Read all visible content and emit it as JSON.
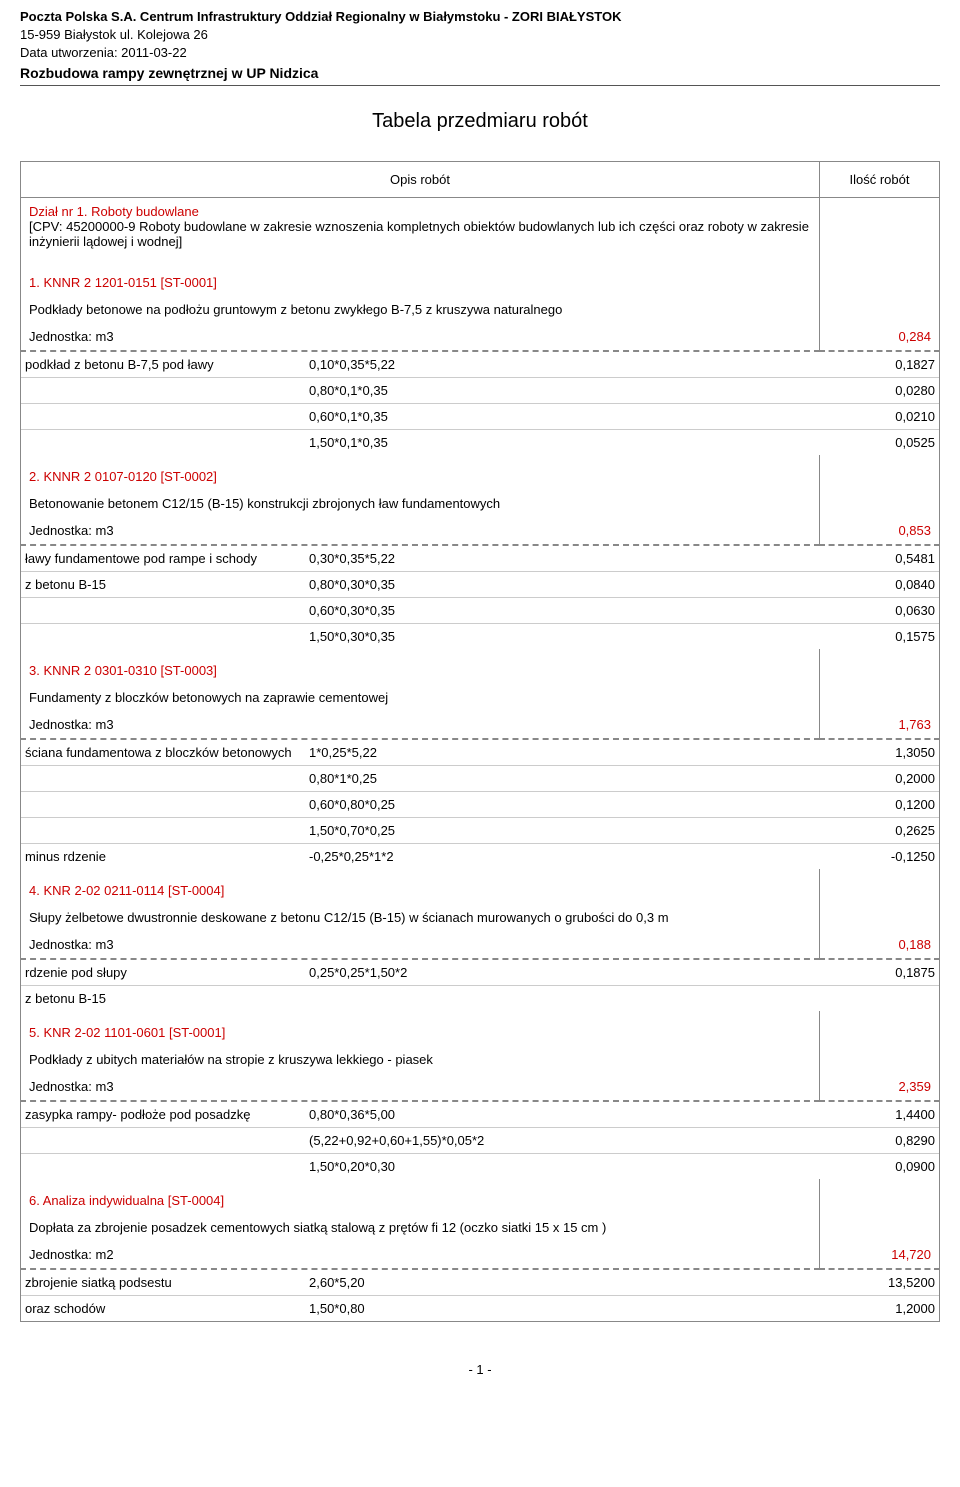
{
  "header": {
    "company_line": "Poczta Polska S.A.  Centrum Infrastruktury Oddział Regionalny w Białymstoku - ZORI BIAŁYSTOK",
    "address_line": "15-959 Białystok ul. Kolejowa 26",
    "date_label": "Data utworzenia: ",
    "date_value": "2011-03-22",
    "project": "Rozbudowa  rampy zewnętrznej  w UP Nidzica"
  },
  "title": "Tabela przedmiaru robót",
  "columns": {
    "desc": "Opis robót",
    "qty": "Ilość robót"
  },
  "section": {
    "title": "Dział nr 1. Roboty budowlane",
    "sub": "[CPV: 45200000-9 Roboty budowlane w zakresie wznoszenia kompletnych obiektów budowlanych lub ich części oraz roboty w zakresie inżynierii lądowej i wodnej]"
  },
  "items": [
    {
      "title": "1. KNNR 2  1201-0151   [ST-0001]",
      "desc": "Podkłady betonowe na podłożu gruntowym z betonu zwykłego B-7,5 z kruszywa naturalnego",
      "unit": "Jednostka: m3",
      "total": "0,284",
      "rows": [
        {
          "label": "podkład z betonu B-7,5 pod ławy",
          "expr": "0,10*0,35*5,22",
          "val": "0,1827"
        },
        {
          "label": "",
          "expr": "0,80*0,1*0,35",
          "val": "0,0280"
        },
        {
          "label": "",
          "expr": "0,60*0,1*0,35",
          "val": "0,0210"
        },
        {
          "label": "",
          "expr": "1,50*0,1*0,35",
          "val": "0,0525"
        }
      ]
    },
    {
      "title": "2. KNNR 2  0107-0120   [ST-0002]",
      "desc": "Betonowanie betonem C12/15 (B-15) konstrukcji zbrojonych ław fundamentowych",
      "unit": "Jednostka: m3",
      "total": "0,853",
      "rows": [
        {
          "label": "ławy fundamentowe pod rampe i schody",
          "expr": "0,30*0,35*5,22",
          "val": "0,5481"
        },
        {
          "label": "z betonu B-15",
          "expr": "0,80*0,30*0,35",
          "val": "0,0840"
        },
        {
          "label": "",
          "expr": "0,60*0,30*0,35",
          "val": "0,0630"
        },
        {
          "label": "",
          "expr": "1,50*0,30*0,35",
          "val": "0,1575"
        }
      ]
    },
    {
      "title": "3. KNNR 2  0301-0310   [ST-0003]",
      "desc": "Fundamenty z bloczków betonowych na zaprawie cementowej",
      "unit": "Jednostka: m3",
      "total": "1,763",
      "rows": [
        {
          "label": "ściana fundamentowa z bloczków betonowych",
          "expr": "1*0,25*5,22",
          "val": "1,3050"
        },
        {
          "label": "",
          "expr": "0,80*1*0,25",
          "val": "0,2000"
        },
        {
          "label": "",
          "expr": "0,60*0,80*0,25",
          "val": "0,1200"
        },
        {
          "label": "",
          "expr": "1,50*0,70*0,25",
          "val": "0,2625"
        },
        {
          "label": "minus rdzenie",
          "expr": "-0,25*0,25*1*2",
          "val": "-0,1250"
        }
      ]
    },
    {
      "title": "4. KNR 2-02  0211-0114   [ST-0004]",
      "desc": "Słupy żelbetowe dwustronnie deskowane z betonu C12/15 (B-15) w ścianach murowanych o grubości do 0,3 m",
      "unit": "Jednostka: m3",
      "total": "0,188",
      "rows": [
        {
          "label": "rdzenie pod słupy",
          "expr": "0,25*0,25*1,50*2",
          "val": "0,1875"
        },
        {
          "label": "z betonu B-15",
          "expr": "",
          "val": ""
        }
      ]
    },
    {
      "title": "5. KNR 2-02  1101-0601   [ST-0001]",
      "desc": "Podkłady z ubitych materiałów na stropie z kruszywa lekkiego - piasek",
      "unit": "Jednostka: m3",
      "total": "2,359",
      "rows": [
        {
          "label": "zasypka rampy- podłoże pod posadzkę",
          "expr": "0,80*0,36*5,00",
          "val": "1,4400"
        },
        {
          "label": "",
          "expr": "(5,22+0,92+0,60+1,55)*0,05*2",
          "val": "0,8290"
        },
        {
          "label": "",
          "expr": "1,50*0,20*0,30",
          "val": "0,0900"
        }
      ]
    },
    {
      "title": "6. Analiza indywidualna   [ST-0004]",
      "desc": "Dopłata za zbrojenie posadzek cementowych siatką stalową z prętów fi 12 (oczko siatki  15 x 15  cm )",
      "unit": "Jednostka: m2",
      "total": "14,720",
      "rows": [
        {
          "label": "zbrojenie siatką podsestu",
          "expr": "2,60*5,20",
          "val": "13,5200"
        },
        {
          "label": "oraz schodów",
          "expr": "1,50*0,80",
          "val": "1,2000"
        }
      ]
    }
  ],
  "page": "- 1 -"
}
